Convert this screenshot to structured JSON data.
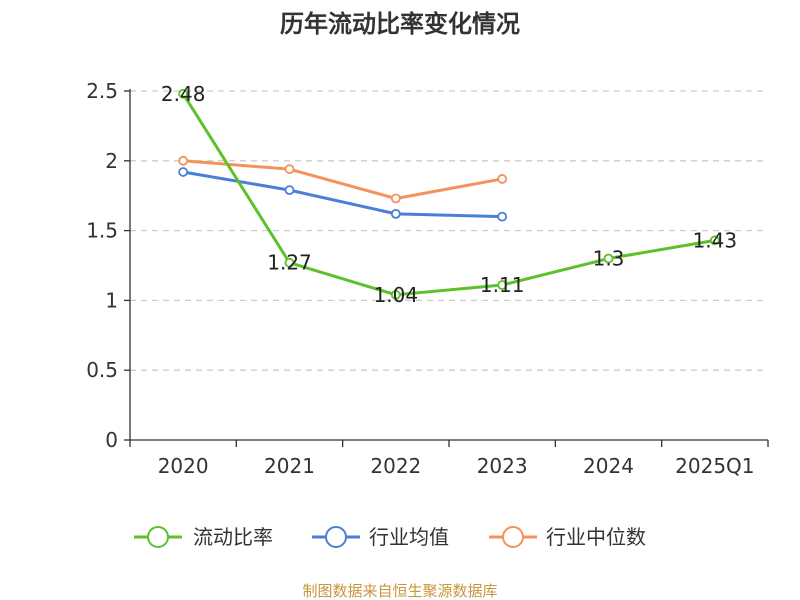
{
  "chart_data": {
    "type": "line",
    "title": "历年流动比率变化情况",
    "xlabel": "",
    "ylabel": "",
    "categories": [
      "2020",
      "2021",
      "2022",
      "2023",
      "2024",
      "2025Q1"
    ],
    "ylim": [
      0,
      2.5
    ],
    "yticks": [
      "0",
      "0.5",
      "1",
      "1.5",
      "2",
      "2.5"
    ],
    "grid": true,
    "legend_position": "bottom",
    "series": [
      {
        "name": "流动比率",
        "color": "#5cc12a",
        "values": [
          2.48,
          1.27,
          1.04,
          1.11,
          1.3,
          1.43
        ],
        "labels": [
          "2.48",
          "1.27",
          "1.04",
          "1.11",
          "1.3",
          "1.43"
        ]
      },
      {
        "name": "行业均值",
        "color": "#4a7fd8",
        "values": [
          1.92,
          1.79,
          1.62,
          1.6,
          null,
          null
        ]
      },
      {
        "name": "行业中位数",
        "color": "#f5915a",
        "values": [
          2.0,
          1.94,
          1.73,
          1.87,
          null,
          null
        ]
      }
    ]
  },
  "source": {
    "text": "制图数据来自恒生聚源数据库",
    "color": "#c8963c"
  }
}
